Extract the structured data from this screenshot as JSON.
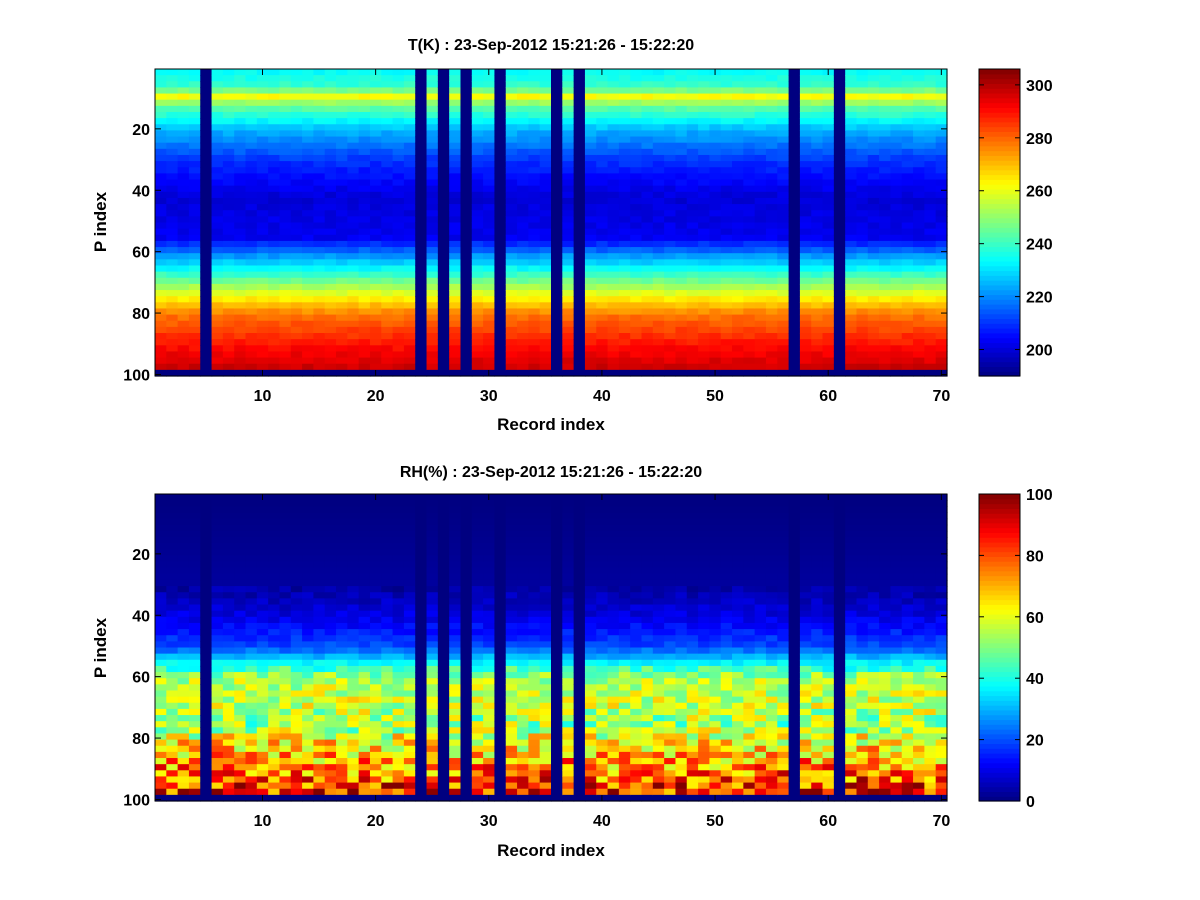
{
  "chart_data": [
    {
      "type": "heatmap",
      "title": "T(K) : 23-Sep-2012 15:21:26 - 15:22:20",
      "xlabel": "Record index",
      "ylabel": "P index",
      "xlim": [
        0.5,
        70.5
      ],
      "ylim": [
        0.5,
        100.5
      ],
      "y_reversed": true,
      "xticks": [
        10,
        20,
        30,
        40,
        50,
        60,
        70
      ],
      "yticks": [
        20,
        40,
        60,
        80,
        100
      ],
      "colormap": "jet",
      "colorbar": {
        "min": 190,
        "max": 306,
        "ticks": [
          200,
          220,
          240,
          260,
          280,
          300
        ]
      },
      "missing_columns": [
        5,
        24,
        26,
        28,
        31,
        36,
        38,
        57,
        61
      ],
      "missing_rows": [
        99,
        100
      ],
      "profile": [
        {
          "p": 1,
          "value": 234
        },
        {
          "p": 6,
          "value": 240
        },
        {
          "p": 9,
          "value": 262
        },
        {
          "p": 12,
          "value": 246
        },
        {
          "p": 20,
          "value": 225
        },
        {
          "p": 30,
          "value": 210
        },
        {
          "p": 42,
          "value": 200
        },
        {
          "p": 55,
          "value": 203
        },
        {
          "p": 62,
          "value": 225
        },
        {
          "p": 68,
          "value": 243
        },
        {
          "p": 74,
          "value": 262
        },
        {
          "p": 80,
          "value": 278
        },
        {
          "p": 90,
          "value": 290
        },
        {
          "p": 98,
          "value": 298
        }
      ]
    },
    {
      "type": "heatmap",
      "title": "RH(%) : 23-Sep-2012 15:21:26 - 15:22:20",
      "xlabel": "Record index",
      "ylabel": "P index",
      "xlim": [
        0.5,
        70.5
      ],
      "ylim": [
        0.5,
        100.5
      ],
      "y_reversed": true,
      "xticks": [
        10,
        20,
        30,
        40,
        50,
        60,
        70
      ],
      "yticks": [
        20,
        40,
        60,
        80,
        100
      ],
      "colormap": "jet",
      "colorbar": {
        "min": 0,
        "max": 100,
        "ticks": [
          0,
          20,
          40,
          60,
          80,
          100
        ]
      },
      "missing_columns": [
        5,
        24,
        26,
        28,
        31,
        36,
        38,
        57,
        61
      ],
      "missing_rows": [
        99,
        100
      ],
      "profile": [
        {
          "p": 1,
          "value": 0
        },
        {
          "p": 30,
          "value": 3
        },
        {
          "p": 40,
          "value": 10
        },
        {
          "p": 50,
          "value": 20
        },
        {
          "p": 56,
          "value": 40
        },
        {
          "p": 60,
          "value": 55
        },
        {
          "p": 68,
          "value": 58
        },
        {
          "p": 75,
          "value": 52
        },
        {
          "p": 82,
          "value": 65
        },
        {
          "p": 92,
          "value": 78
        },
        {
          "p": 98,
          "value": 88
        }
      ]
    }
  ]
}
